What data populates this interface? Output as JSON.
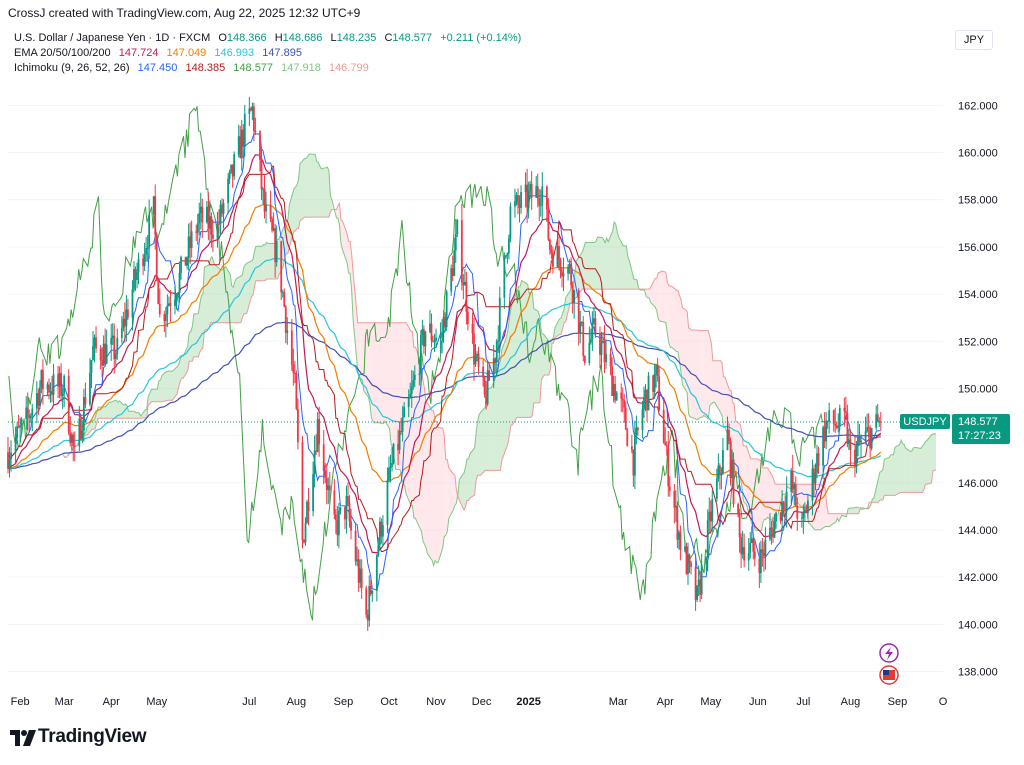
{
  "header": {
    "text": "CrossJ created with TradingView.com, Aug 22, 2025 12:32 UTC+9"
  },
  "legend": {
    "symbol": "U.S. Dollar / Japanese Yen · 1D · FXCM",
    "ohlc": {
      "o_label": "O",
      "o": "148.366",
      "h_label": "H",
      "h": "148.686",
      "l_label": "L",
      "l": "148.235",
      "c_label": "C",
      "c": "148.577",
      "change": "+0.211 (+0.14%)"
    },
    "ema": {
      "label": "EMA 20/50/100/200",
      "values": [
        "147.724",
        "147.049",
        "146.993",
        "147.895"
      ],
      "colors": [
        "#c2185b",
        "#f57c00",
        "#26c6da",
        "#3f51b5"
      ]
    },
    "ichimoku": {
      "label": "Ichimoku (9, 26, 52, 26)",
      "values": [
        "147.450",
        "148.385",
        "148.577",
        "147.918",
        "146.799"
      ],
      "colors": [
        "#2962ff",
        "#b71c1c",
        "#43a047",
        "#81c784",
        "#ef9a9a"
      ]
    }
  },
  "currency": "JPY",
  "price_tag": {
    "symbol": "USDJPY",
    "price": "148.577",
    "countdown": "17:27:23",
    "color": "#089981"
  },
  "chart_data": {
    "type": "candlestick",
    "title": "U.S. Dollar / Japanese Yen · 1D · FXCM",
    "y_axis": {
      "ticks": [
        "162.000",
        "160.000",
        "158.000",
        "156.000",
        "154.000",
        "152.000",
        "150.000",
        "148.000",
        "146.000",
        "144.000",
        "142.000",
        "140.000",
        "138.000"
      ],
      "range": [
        137.3,
        163.5
      ],
      "position": "right"
    },
    "x_axis": {
      "ticks": [
        "Feb",
        "Mar",
        "Apr",
        "May",
        "Jul",
        "Aug",
        "Sep",
        "Oct",
        "Nov",
        "Dec",
        "2025",
        "Mar",
        "Apr",
        "May",
        "Jun",
        "Jul",
        "Aug",
        "Sep",
        "O"
      ]
    },
    "colors": {
      "up": "#089981",
      "down": "#f23645",
      "kumo_bull": "#a5d6a7",
      "kumo_bear": "#ffcdd2"
    },
    "price_anchors": [
      [
        "2024-01-24",
        147.3
      ],
      [
        "2024-02-05",
        148.6
      ],
      [
        "2024-02-15",
        150.2
      ],
      [
        "2024-03-01",
        150.0
      ],
      [
        "2024-03-08",
        147.0
      ],
      [
        "2024-03-20",
        151.6
      ],
      [
        "2024-04-05",
        151.6
      ],
      [
        "2024-04-15",
        154.2
      ],
      [
        "2024-04-29",
        157.5
      ],
      [
        "2024-05-03",
        153.0
      ],
      [
        "2024-05-15",
        154.5
      ],
      [
        "2024-05-29",
        157.2
      ],
      [
        "2024-06-10",
        156.8
      ],
      [
        "2024-06-28",
        161.0
      ],
      [
        "2024-07-03",
        161.8
      ],
      [
        "2024-07-11",
        157.5
      ],
      [
        "2024-07-20",
        155.5
      ],
      [
        "2024-07-31",
        150.0
      ],
      [
        "2024-08-05",
        143.5
      ],
      [
        "2024-08-15",
        148.5
      ],
      [
        "2024-08-26",
        144.0
      ],
      [
        "2024-09-03",
        145.0
      ],
      [
        "2024-09-16",
        140.3
      ],
      [
        "2024-09-24",
        143.5
      ],
      [
        "2024-10-02",
        146.5
      ],
      [
        "2024-10-15",
        149.5
      ],
      [
        "2024-10-25",
        152.5
      ],
      [
        "2024-11-04",
        152.0
      ],
      [
        "2024-11-15",
        156.5
      ],
      [
        "2024-11-26",
        151.5
      ],
      [
        "2024-12-03",
        149.5
      ],
      [
        "2024-12-10",
        151.5
      ],
      [
        "2024-12-20",
        157.5
      ],
      [
        "2025-01-10",
        158.5
      ],
      [
        "2025-01-15",
        156.0
      ],
      [
        "2025-01-28",
        155.0
      ],
      [
        "2025-02-07",
        151.5
      ],
      [
        "2025-02-14",
        152.5
      ],
      [
        "2025-03-04",
        149.0
      ],
      [
        "2025-03-11",
        147.0
      ],
      [
        "2025-03-18",
        149.5
      ],
      [
        "2025-03-26",
        150.5
      ],
      [
        "2025-04-04",
        146.0
      ],
      [
        "2025-04-11",
        143.5
      ],
      [
        "2025-04-22",
        141.0
      ],
      [
        "2025-05-02",
        145.0
      ],
      [
        "2025-05-12",
        148.0
      ],
      [
        "2025-05-20",
        143.5
      ],
      [
        "2025-06-03",
        142.8
      ],
      [
        "2025-06-13",
        144.5
      ],
      [
        "2025-06-23",
        146.0
      ],
      [
        "2025-06-30",
        144.0
      ],
      [
        "2025-07-08",
        146.5
      ],
      [
        "2025-07-16",
        148.5
      ],
      [
        "2025-07-29",
        148.5
      ],
      [
        "2025-08-01",
        147.0
      ],
      [
        "2025-08-06",
        147.5
      ],
      [
        "2025-08-12",
        148.0
      ],
      [
        "2025-08-21",
        148.577
      ]
    ]
  }
}
